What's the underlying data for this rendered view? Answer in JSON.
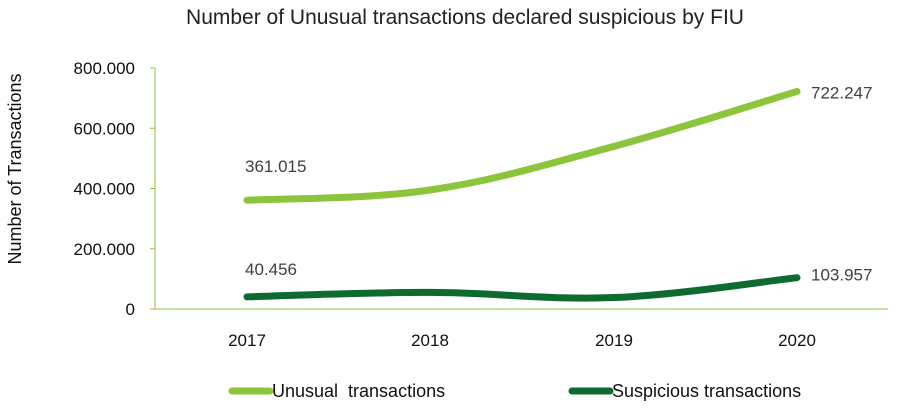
{
  "chart_data": {
    "type": "line",
    "title": "Number of Unusual transactions declared suspicious by FIU",
    "xlabel": "",
    "ylabel": "Number of Transactions",
    "categories": [
      "2017",
      "2018",
      "2019",
      "2020"
    ],
    "ylim": [
      0,
      800000
    ],
    "yticks": [
      0,
      200000,
      400000,
      600000,
      800000
    ],
    "ytick_labels": [
      "0",
      "200.000",
      "400.000",
      "600.000",
      "800.000"
    ],
    "grid": false,
    "legend_position": "bottom",
    "series": [
      {
        "name": "Unusual  transactions",
        "color": "#8cc43c",
        "values": [
          361015,
          395000,
          540000,
          722247
        ],
        "data_labels": [
          {
            "index": 0,
            "text": "361.015"
          },
          {
            "index": 3,
            "text": "722.247"
          }
        ]
      },
      {
        "name": "Suspicious transactions",
        "color": "#0e6b30",
        "values": [
          40456,
          55000,
          38000,
          103957
        ],
        "data_labels": [
          {
            "index": 0,
            "text": "40.456"
          },
          {
            "index": 3,
            "text": "103.957"
          }
        ]
      }
    ]
  }
}
